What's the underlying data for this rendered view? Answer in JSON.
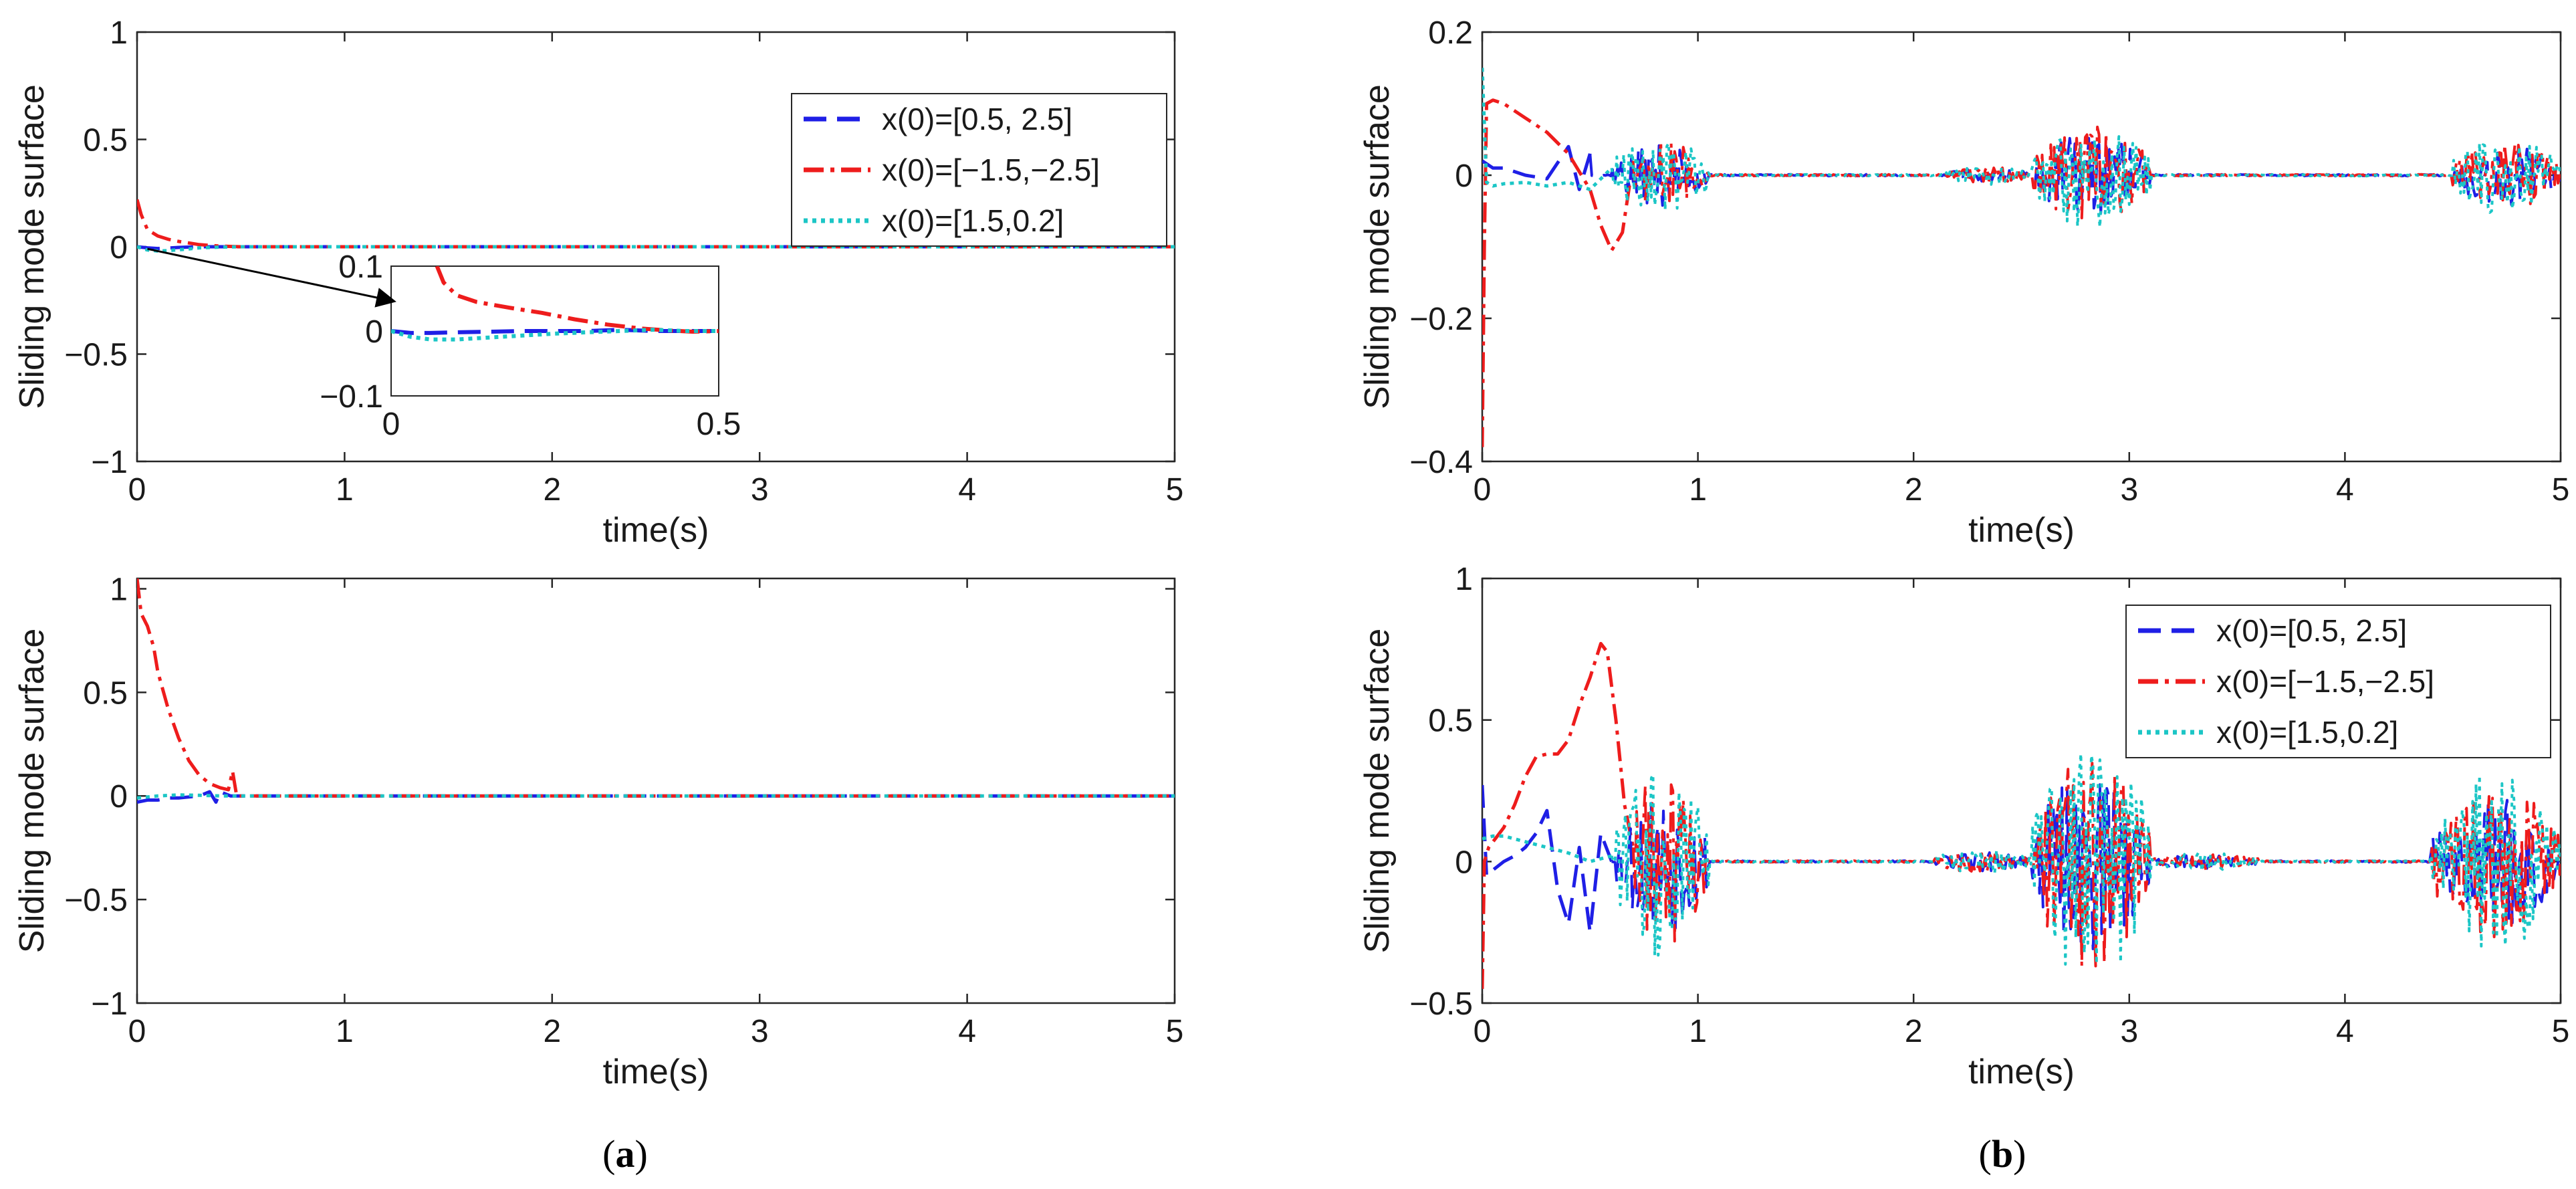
{
  "captions": {
    "a": "a",
    "b": "b"
  },
  "colors": {
    "blue": "#1f1fe6",
    "red": "#ee1c1c",
    "cyan": "#1cc6c6"
  },
  "chart_data": [
    {
      "id": "a1",
      "type": "line",
      "title": "",
      "xlabel": "time(s)",
      "ylabel": "Sliding mode surface",
      "xlim": [
        0,
        5
      ],
      "ylim": [
        -1,
        1
      ],
      "xticks": [
        0,
        1,
        2,
        3,
        4,
        5
      ],
      "xtick_labels": [
        "0",
        "1",
        "2",
        "3",
        "4",
        "5"
      ],
      "yticks": [
        -1,
        -0.5,
        0,
        0.5,
        1
      ],
      "ytick_labels": [
        "−1",
        "−0.5",
        "0",
        "0.5",
        "1"
      ],
      "legend": [
        "x(0)=[0.5, 2.5]",
        "x(0)=[−1.5,−2.5]",
        "x(0)=[1.5,0.2]"
      ],
      "legend_position": "top-right",
      "series": [
        {
          "name": "x(0)=[0.5, 2.5]",
          "style": "dashed",
          "color": "blue",
          "x": [
            0,
            0.05,
            0.1,
            0.15,
            0.2,
            0.3,
            0.5,
            1,
            5
          ],
          "y": [
            0,
            -0.005,
            -0.008,
            -0.006,
            -0.003,
            0,
            0,
            0,
            0
          ]
        },
        {
          "name": "x(0)=[−1.5,−2.5]",
          "style": "dashdot",
          "color": "red",
          "x": [
            0,
            0.02,
            0.05,
            0.1,
            0.15,
            0.2,
            0.3,
            0.4,
            0.5,
            1,
            5
          ],
          "y": [
            0.22,
            0.15,
            0.08,
            0.05,
            0.035,
            0.025,
            0.01,
            0.003,
            0,
            0,
            0
          ]
        },
        {
          "name": "x(0)=[1.5,0.2]",
          "style": "dotted",
          "color": "cyan",
          "x": [
            0,
            0.05,
            0.1,
            0.15,
            0.2,
            0.25,
            0.3,
            0.4,
            0.5,
            1,
            5
          ],
          "y": [
            0,
            -0.015,
            -0.02,
            -0.018,
            -0.014,
            -0.01,
            -0.005,
            -0.002,
            0,
            0,
            0
          ]
        }
      ],
      "inset": {
        "xlim": [
          0,
          0.5
        ],
        "ylim": [
          -0.1,
          0.1
        ],
        "xticks": [
          0,
          0.5
        ],
        "xtick_labels": [
          "0",
          "0.5"
        ],
        "yticks": [
          -0.1,
          0,
          0.1
        ],
        "ytick_labels": [
          "−0.1",
          "0",
          "0.1"
        ],
        "series": [
          {
            "color": "blue",
            "style": "dashed",
            "x": [
              0,
              0.03,
              0.06,
              0.1,
              0.15,
              0.2,
              0.25,
              0.3,
              0.35,
              0.4,
              0.45,
              0.5
            ],
            "y": [
              0,
              -0.003,
              -0.003,
              -0.002,
              -0.001,
              0,
              0,
              0,
              0.002,
              0,
              0,
              0
            ]
          },
          {
            "color": "red",
            "style": "dashdot",
            "x": [
              0.07,
              0.08,
              0.1,
              0.13,
              0.18,
              0.23,
              0.28,
              0.33,
              0.38,
              0.42,
              0.46,
              0.5
            ],
            "y": [
              0.1,
              0.075,
              0.055,
              0.045,
              0.036,
              0.028,
              0.018,
              0.01,
              0.004,
              0.001,
              -0.001,
              0
            ]
          },
          {
            "color": "cyan",
            "style": "dotted",
            "x": [
              0,
              0.03,
              0.06,
              0.1,
              0.15,
              0.2,
              0.25,
              0.3,
              0.35,
              0.4,
              0.45,
              0.5
            ],
            "y": [
              0,
              -0.009,
              -0.013,
              -0.013,
              -0.01,
              -0.007,
              -0.004,
              -0.002,
              0,
              0.002,
              0,
              0
            ]
          }
        ]
      }
    },
    {
      "id": "a2",
      "type": "line",
      "title": "",
      "xlabel": "time(s)",
      "ylabel": "Sliding mode surface",
      "xlim": [
        0,
        5
      ],
      "ylim": [
        -1,
        1.05
      ],
      "xticks": [
        0,
        1,
        2,
        3,
        4,
        5
      ],
      "xtick_labels": [
        "0",
        "1",
        "2",
        "3",
        "4",
        "5"
      ],
      "yticks": [
        -1,
        -0.5,
        0,
        0.5,
        1
      ],
      "ytick_labels": [
        "−1",
        "−0.5",
        "0",
        "0.5",
        "1"
      ],
      "series": [
        {
          "name": "x(0)=[0.5, 2.5]",
          "style": "dashed",
          "color": "blue",
          "x": [
            0,
            0.05,
            0.1,
            0.15,
            0.2,
            0.3,
            0.35,
            0.38,
            0.4,
            0.45,
            0.5,
            5
          ],
          "y": [
            -0.03,
            -0.02,
            -0.02,
            -0.01,
            -0.01,
            0,
            0.02,
            -0.03,
            0.02,
            0,
            0,
            0
          ]
        },
        {
          "name": "x(0)=[−1.5,−2.5]",
          "style": "dashdot",
          "color": "red",
          "x": [
            0,
            0.02,
            0.05,
            0.08,
            0.1,
            0.15,
            0.2,
            0.25,
            0.3,
            0.35,
            0.4,
            0.44,
            0.46,
            0.48,
            0.5,
            5
          ],
          "y": [
            1.05,
            0.88,
            0.82,
            0.72,
            0.6,
            0.42,
            0.28,
            0.17,
            0.1,
            0.06,
            0.04,
            0.03,
            0.12,
            0,
            0,
            0
          ]
        },
        {
          "name": "x(0)=[1.5,0.2]",
          "style": "dotted",
          "color": "cyan",
          "x": [
            0,
            0.05,
            0.1,
            0.2,
            0.3,
            0.4,
            0.5,
            5
          ],
          "y": [
            -0.01,
            -0.005,
            0,
            0.005,
            0.003,
            0,
            0,
            0
          ]
        }
      ]
    },
    {
      "id": "b1",
      "type": "line",
      "title": "",
      "xlabel": "time(s)",
      "ylabel": "Sliding mode surface",
      "xlim": [
        0,
        5
      ],
      "ylim": [
        -0.4,
        0.2
      ],
      "xticks": [
        0,
        1,
        2,
        3,
        4,
        5
      ],
      "xtick_labels": [
        "0",
        "1",
        "2",
        "3",
        "4",
        "5"
      ],
      "yticks": [
        -0.4,
        -0.2,
        0,
        0.2
      ],
      "ytick_labels": [
        "−0.4",
        "−0.2",
        "0",
        "0.2"
      ],
      "series": [
        {
          "name": "x(0)=[0.5, 2.5]",
          "style": "dashed",
          "color": "blue",
          "x": [
            0,
            0.05,
            0.1,
            0.2,
            0.3,
            0.4,
            0.45,
            0.5
          ],
          "y": [
            0.02,
            0.01,
            0.01,
            0,
            -0.005,
            0.04,
            -0.02,
            0.03
          ]
        },
        {
          "name": "x(0)=[−1.5,−2.5]",
          "style": "dashdot",
          "color": "red",
          "x": [
            0,
            0.01,
            0.02,
            0.05,
            0.1,
            0.2,
            0.3,
            0.4,
            0.5,
            0.55,
            0.6,
            0.65,
            0.7
          ],
          "y": [
            -0.38,
            -0.1,
            0.1,
            0.105,
            0.1,
            0.08,
            0.06,
            0.03,
            -0.02,
            -0.07,
            -0.105,
            -0.08,
            0.02
          ]
        },
        {
          "name": "x(0)=[1.5,0.2]",
          "style": "dotted",
          "color": "cyan",
          "x": [
            0,
            0.02,
            0.05,
            0.1,
            0.2,
            0.3,
            0.4,
            0.5,
            0.6
          ],
          "y": [
            0.15,
            -0.01,
            -0.015,
            -0.012,
            -0.01,
            -0.015,
            -0.01,
            -0.02,
            0.01
          ]
        }
      ],
      "bursts": [
        {
          "t0": 0.6,
          "t1": 1.05,
          "amp": 0.05
        },
        {
          "t0": 2.15,
          "t1": 2.55,
          "amp": 0.012
        },
        {
          "t0": 2.55,
          "t1": 3.1,
          "amp": 0.07
        },
        {
          "t0": 4.5,
          "t1": 5.0,
          "amp": 0.05
        }
      ]
    },
    {
      "id": "b2",
      "type": "line",
      "title": "",
      "xlabel": "time(s)",
      "ylabel": "Sliding mode surface",
      "xlim": [
        0,
        5
      ],
      "ylim": [
        -0.5,
        1
      ],
      "xticks": [
        0,
        1,
        2,
        3,
        4,
        5
      ],
      "xtick_labels": [
        "0",
        "1",
        "2",
        "3",
        "4",
        "5"
      ],
      "yticks": [
        -0.5,
        0,
        0.5,
        1
      ],
      "ytick_labels": [
        "−0.5",
        "0",
        "0.5",
        "1"
      ],
      "legend": [
        "x(0)=[0.5, 2.5]",
        "x(0)=[−1.5,−2.5]",
        "x(0)=[1.5,0.2]"
      ],
      "legend_position": "top-right",
      "series": [
        {
          "name": "x(0)=[0.5, 2.5]",
          "style": "dashed",
          "color": "blue",
          "x": [
            0,
            0.02,
            0.05,
            0.1,
            0.15,
            0.2,
            0.25,
            0.3,
            0.35,
            0.4,
            0.45,
            0.5,
            0.55,
            0.6
          ],
          "y": [
            0.27,
            -0.05,
            -0.03,
            0,
            0.02,
            0.05,
            0.1,
            0.18,
            -0.1,
            -0.22,
            0.05,
            -0.25,
            0.1,
            0
          ]
        },
        {
          "name": "x(0)=[−1.5,−2.5]",
          "style": "dashdot",
          "color": "red",
          "x": [
            0,
            0.01,
            0.03,
            0.06,
            0.1,
            0.15,
            0.2,
            0.25,
            0.3,
            0.35,
            0.4,
            0.45,
            0.5,
            0.55,
            0.58,
            0.62,
            0.66,
            0.7
          ],
          "y": [
            -0.45,
            0,
            0.05,
            0.08,
            0.12,
            0.2,
            0.3,
            0.37,
            0.38,
            0.38,
            0.43,
            0.55,
            0.65,
            0.77,
            0.74,
            0.5,
            0.2,
            0.05
          ]
        },
        {
          "name": "x(0)=[1.5,0.2]",
          "style": "dotted",
          "color": "cyan",
          "x": [
            0,
            0.05,
            0.1,
            0.2,
            0.3,
            0.4,
            0.5,
            0.6
          ],
          "y": [
            0.08,
            0.09,
            0.09,
            0.07,
            0.05,
            0.03,
            0.0,
            0.02
          ]
        }
      ],
      "bursts": [
        {
          "t0": 0.62,
          "t1": 1.05,
          "amp": 0.3
        },
        {
          "t0": 2.1,
          "t1": 2.55,
          "amp": 0.04
        },
        {
          "t0": 2.55,
          "t1": 3.1,
          "amp": 0.38
        },
        {
          "t0": 3.1,
          "t1": 3.6,
          "amp": 0.03
        },
        {
          "t0": 4.4,
          "t1": 5.0,
          "amp": 0.28
        }
      ]
    }
  ]
}
